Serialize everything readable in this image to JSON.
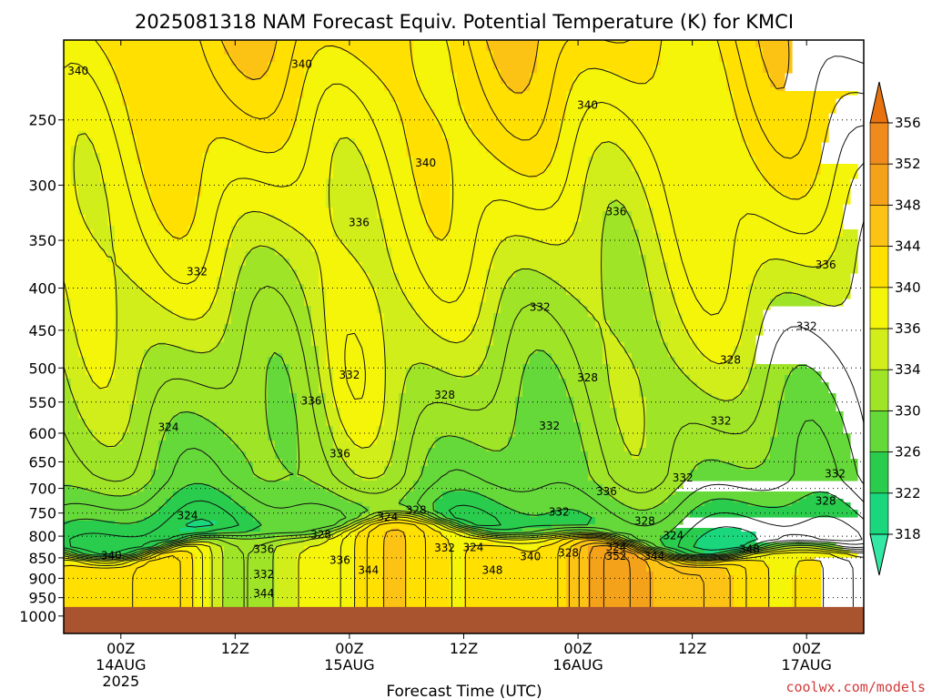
{
  "chart_data": {
    "type": "heatmap",
    "title": "2025081318 NAM Forecast Equiv. Potential Temperature (K) for KMCI",
    "xlabel": "Forecast Time (UTC)",
    "ylabel": "",
    "credit": "coolwx.com/models",
    "x_ticks": [
      {
        "hour": 6,
        "label": "00Z",
        "sub1": "14AUG",
        "sub2": "2025"
      },
      {
        "hour": 18,
        "label": "12Z",
        "sub1": "",
        "sub2": ""
      },
      {
        "hour": 30,
        "label": "00Z",
        "sub1": "15AUG",
        "sub2": ""
      },
      {
        "hour": 42,
        "label": "12Z",
        "sub1": "",
        "sub2": ""
      },
      {
        "hour": 54,
        "label": "00Z",
        "sub1": "16AUG",
        "sub2": ""
      },
      {
        "hour": 66,
        "label": "12Z",
        "sub1": "",
        "sub2": ""
      },
      {
        "hour": 78,
        "label": "00Z",
        "sub1": "17AUG",
        "sub2": ""
      }
    ],
    "xlim_hours": [
      0,
      84
    ],
    "y_axis": "pressure (hPa), log scale",
    "ylim_hpa": [
      1050,
      200
    ],
    "y_ticks": [
      250,
      300,
      350,
      400,
      450,
      500,
      550,
      600,
      650,
      700,
      750,
      800,
      850,
      900,
      950,
      1000
    ],
    "grid": "dotted at pressure ticks",
    "colorbar": {
      "position": "right",
      "levels": [
        318,
        322,
        326,
        330,
        334,
        336,
        340,
        344,
        348,
        352,
        356
      ],
      "colors": [
        "#33e8a4",
        "#1ad77e",
        "#29cc4c",
        "#66d93a",
        "#a0e428",
        "#d2ee1a",
        "#f5f50a",
        "#ffe000",
        "#fcc314",
        "#f4a21a",
        "#ef8a1c",
        "#e7720f"
      ]
    },
    "surface_color": "#a9532f",
    "contour_labels": [
      {
        "hour": 1.5,
        "p": 218,
        "text": "340"
      },
      {
        "hour": 25,
        "p": 214,
        "text": "340"
      },
      {
        "hour": 38,
        "p": 282,
        "text": "340"
      },
      {
        "hour": 55,
        "p": 240,
        "text": "340"
      },
      {
        "hour": 31,
        "p": 333,
        "text": "336"
      },
      {
        "hour": 58,
        "p": 323,
        "text": "336"
      },
      {
        "hour": 80,
        "p": 375,
        "text": "336"
      },
      {
        "hour": 14,
        "p": 382,
        "text": "332"
      },
      {
        "hour": 50,
        "p": 422,
        "text": "332"
      },
      {
        "hour": 78,
        "p": 445,
        "text": "332"
      },
      {
        "hour": 70,
        "p": 489,
        "text": "328"
      },
      {
        "hour": 55,
        "p": 514,
        "text": "328"
      },
      {
        "hour": 40,
        "p": 539,
        "text": "328"
      },
      {
        "hour": 30,
        "p": 510,
        "text": "332"
      },
      {
        "hour": 26,
        "p": 548,
        "text": "336"
      },
      {
        "hour": 11,
        "p": 590,
        "text": "324"
      },
      {
        "hour": 51,
        "p": 588,
        "text": "332"
      },
      {
        "hour": 69,
        "p": 580,
        "text": "332"
      },
      {
        "hour": 29,
        "p": 635,
        "text": "336"
      },
      {
        "hour": 65,
        "p": 680,
        "text": "332"
      },
      {
        "hour": 81,
        "p": 672,
        "text": "332"
      },
      {
        "hour": 57,
        "p": 706,
        "text": "336"
      },
      {
        "hour": 80,
        "p": 725,
        "text": "328"
      },
      {
        "hour": 13,
        "p": 755,
        "text": "324"
      },
      {
        "hour": 34,
        "p": 758,
        "text": "324"
      },
      {
        "hour": 37,
        "p": 744,
        "text": "328"
      },
      {
        "hour": 52,
        "p": 748,
        "text": "332"
      },
      {
        "hour": 61,
        "p": 767,
        "text": "328"
      },
      {
        "hour": 64,
        "p": 799,
        "text": "324"
      },
      {
        "hour": 27,
        "p": 797,
        "text": "328"
      },
      {
        "hour": 5,
        "p": 845,
        "text": "340"
      },
      {
        "hour": 21,
        "p": 830,
        "text": "336"
      },
      {
        "hour": 40,
        "p": 827,
        "text": "332"
      },
      {
        "hour": 43,
        "p": 826,
        "text": "324"
      },
      {
        "hour": 49,
        "p": 847,
        "text": "340"
      },
      {
        "hour": 53,
        "p": 838,
        "text": "328"
      },
      {
        "hour": 58,
        "p": 846,
        "text": "352"
      },
      {
        "hour": 58,
        "p": 825,
        "text": "324"
      },
      {
        "hour": 62,
        "p": 846,
        "text": "344"
      },
      {
        "hour": 72,
        "p": 830,
        "text": "348"
      },
      {
        "hour": 29,
        "p": 856,
        "text": "336"
      },
      {
        "hour": 32,
        "p": 880,
        "text": "344"
      },
      {
        "hour": 45,
        "p": 880,
        "text": "348"
      },
      {
        "hour": 21,
        "p": 890,
        "text": "332"
      },
      {
        "hour": 21,
        "p": 939,
        "text": "344"
      }
    ]
  }
}
